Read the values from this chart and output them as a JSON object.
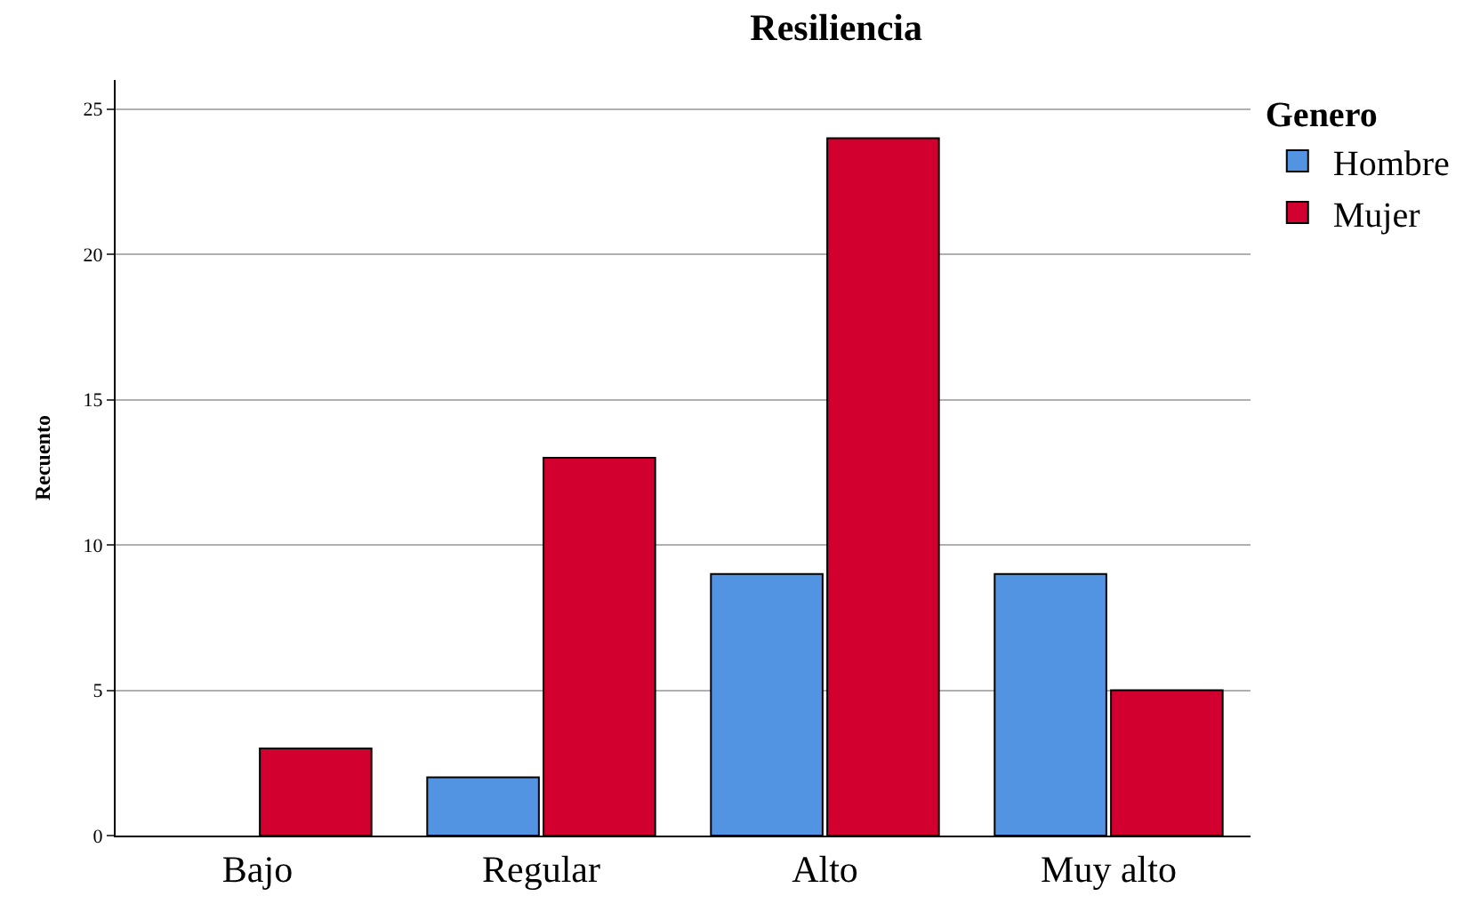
{
  "chart_data": {
    "type": "bar",
    "title": "Resiliencia",
    "ylabel": "Recuento",
    "legend_title": "Genero",
    "categories": [
      "Bajo",
      "Regular",
      "Alto",
      "Muy alto"
    ],
    "series": [
      {
        "name": "Hombre",
        "color": "#5294e2",
        "values": [
          null,
          2,
          9,
          9
        ]
      },
      {
        "name": "Mujer",
        "color": "#d2002e",
        "values": [
          3,
          13,
          24,
          5
        ]
      }
    ],
    "ylim": [
      0,
      26
    ],
    "yticks": [
      0,
      5,
      10,
      15,
      20,
      25
    ],
    "grid": "y",
    "legend": "top right"
  }
}
